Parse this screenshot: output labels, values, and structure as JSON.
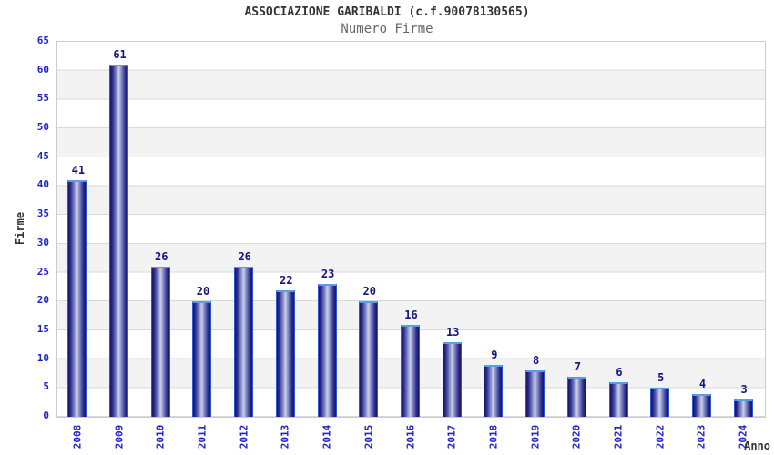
{
  "header": {
    "title": "ASSOCIAZIONE GARIBALDI (c.f.90078130565)",
    "subtitle": "Numero Firme"
  },
  "chart_data": {
    "type": "bar",
    "categories": [
      "2008",
      "2009",
      "2010",
      "2011",
      "2012",
      "2013",
      "2014",
      "2015",
      "2016",
      "2017",
      "2018",
      "2019",
      "2020",
      "2021",
      "2022",
      "2023",
      "2024"
    ],
    "values": [
      41,
      61,
      26,
      20,
      26,
      22,
      23,
      20,
      16,
      13,
      9,
      8,
      7,
      6,
      5,
      4,
      3
    ],
    "title": "ASSOCIAZIONE GARIBALDI (c.f.90078130565)",
    "subtitle": "Numero Firme",
    "xlabel": "Anno",
    "ylabel": "Firme",
    "ylim": [
      0,
      65
    ],
    "ytick_step": 5,
    "yticks": [
      0,
      5,
      10,
      15,
      20,
      25,
      30,
      35,
      40,
      45,
      50,
      55,
      60,
      65
    ],
    "bar_value_labels": true,
    "grid": "horizontal-bands-alternating",
    "legend_position": "none"
  },
  "colors": {
    "title": "#333333",
    "subtitle": "#666666",
    "tick_label": "#2222cc",
    "value_label": "#15157d",
    "axis_label": "#333333",
    "bar_dark": "#14146a",
    "bar_mid": "#8f96cc",
    "bar_light": "#cdd1ea",
    "bar_border": "#2d59d8",
    "bar_top_highlight": "#5a9de4",
    "band_gray": "#f3f3f3",
    "grid_line": "#d9d9d9",
    "plot_border": "#cccccc"
  }
}
